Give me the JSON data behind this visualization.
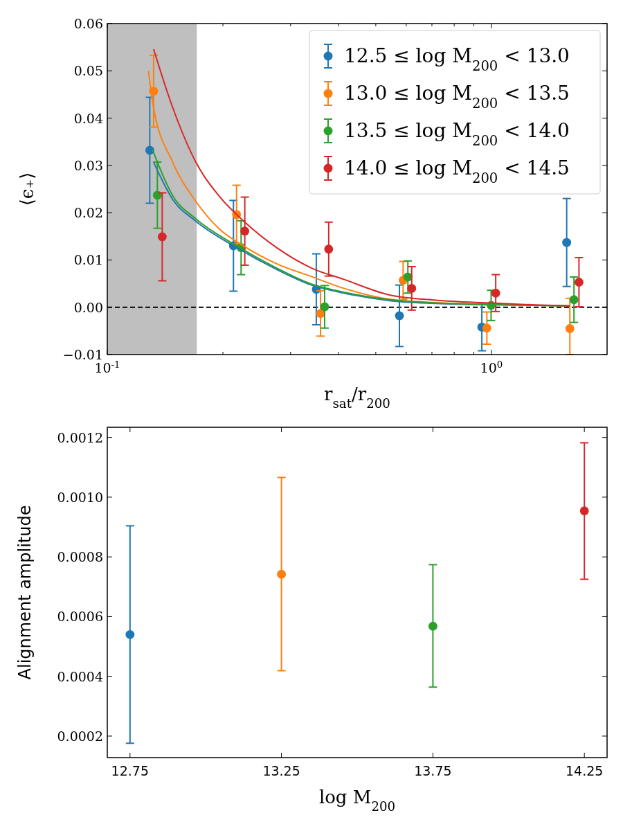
{
  "chart_data": [
    {
      "type": "scatter",
      "xlabel": "r$_{sat}$/r$_{200}$",
      "ylabel": "⟨ϵ₊⟩",
      "log": "x",
      "xlim": [
        0.1,
        2
      ],
      "ylim": [
        -0.01,
        0.06
      ],
      "xticks": [
        {
          "value": 0.1,
          "label": "10$^{-1}$"
        },
        {
          "value": 0.2,
          "label": null
        },
        {
          "value": 0.3,
          "label": null
        },
        {
          "value": 0.4,
          "label": null
        },
        {
          "value": 0.5,
          "label": null
        },
        {
          "value": 0.6,
          "label": null
        },
        {
          "value": 0.7,
          "label": null
        },
        {
          "value": 0.8,
          "label": null
        },
        {
          "value": 0.9,
          "label": null
        },
        {
          "value": 1,
          "label": "10$^{0}$"
        }
      ],
      "yticks": [
        {
          "value": -0.01,
          "label": "−0.01"
        },
        {
          "value": 0,
          "label": "0.00"
        },
        {
          "value": 0.01,
          "label": "0.01"
        },
        {
          "value": 0.02,
          "label": "0.02"
        },
        {
          "value": 0.03,
          "label": "0.03"
        },
        {
          "value": 0.04,
          "label": "0.04"
        },
        {
          "value": 0.05,
          "label": "0.05"
        },
        {
          "value": 0.06,
          "label": "0.06"
        }
      ],
      "legend": "top right",
      "marker": "circle",
      "grid": false,
      "bands": [
        {
          "axis": "x",
          "from": 0.1,
          "to": 0.171,
          "color": "#bfbfbf"
        }
      ],
      "ref_lines": [
        {
          "axis": "y",
          "value": 0,
          "color": "#000000",
          "line_style": "dashed"
        }
      ],
      "series": [
        {
          "name": "12.5 ≤ log M$_{200}$ < 13.0",
          "color": "#1f77b4",
          "x": [
            0.129,
            0.213,
            0.35,
            0.576,
            0.944,
            1.57
          ],
          "values": [
            0.0332,
            0.013,
            0.0038,
            -0.0018,
            -0.0042,
            0.0137
          ],
          "errors": [
            0.0112,
            0.0096,
            0.0075,
            0.0065,
            0.005,
            0.0093
          ]
        },
        {
          "name": "13.0 ≤ log M$_{200}$ < 13.5",
          "color": "#ff7f0e",
          "x": [
            0.132,
            0.217,
            0.359,
            0.589,
            0.973,
            1.6
          ],
          "values": [
            0.0457,
            0.0196,
            -0.0013,
            0.0057,
            -0.0044,
            -0.0045
          ],
          "errors": [
            0.0076,
            0.0062,
            0.0048,
            0.004,
            0.0034,
            [
              -0.01,
              0.0019
            ]
          ]
        },
        {
          "name": "13.5 ≤ log M$_{200}$ < 14.0",
          "color": "#2ca02c",
          "x": [
            0.135,
            0.223,
            0.368,
            0.606,
            0.998,
            1.64
          ],
          "values": [
            0.0237,
            0.0126,
            0.0001,
            0.0064,
            0.0004,
            0.0016
          ],
          "errors": [
            0.007,
            0.0057,
            0.0045,
            0.0034,
            0.0032,
            0.0048
          ]
        },
        {
          "name": "14.0 ≤ log M$_{200}$ < 14.5",
          "color": "#d62728",
          "x": [
            0.139,
            0.228,
            0.377,
            0.62,
            1.026,
            1.69
          ],
          "values": [
            0.0149,
            0.0161,
            0.0123,
            0.004,
            0.003,
            0.0053
          ],
          "errors": [
            0.0093,
            0.0072,
            0.0057,
            0.0046,
            0.0039,
            0.0052
          ]
        },
        {
          "type": "line",
          "marker": "none",
          "color": "#1f77b4",
          "x": [
            0.132,
            0.148,
            0.17,
            0.213,
            0.276,
            0.34,
            0.413,
            0.543,
            0.717,
            0.995,
            1.3,
            1.6
          ],
          "values": [
            0.0307,
            0.0228,
            0.0182,
            0.013,
            0.008,
            0.0047,
            0.003,
            0.0014,
            0.0008,
            0.0005,
            0.0004,
            0.0003
          ]
        },
        {
          "type": "line",
          "marker": "none",
          "color": "#ff7f0e",
          "x": [
            0.128,
            0.1315,
            0.148,
            0.17,
            0.196,
            0.224,
            0.276,
            0.34,
            0.413,
            0.543,
            0.717,
            0.995,
            1.3,
            1.6
          ],
          "values": [
            0.05,
            0.0429,
            0.0307,
            0.0224,
            0.0165,
            0.0132,
            0.0092,
            0.0065,
            0.004,
            0.0017,
            0.001,
            0.0006,
            0.0004,
            0.0003
          ]
        },
        {
          "type": "line",
          "marker": "none",
          "color": "#2ca02c",
          "x": [
            0.131,
            0.148,
            0.17,
            0.213,
            0.276,
            0.34,
            0.413,
            0.543,
            0.717,
            0.995,
            1.3,
            1.6
          ],
          "values": [
            0.0334,
            0.0236,
            0.0187,
            0.0134,
            0.0083,
            0.0049,
            0.0032,
            0.0016,
            0.0009,
            0.0006,
            0.0004,
            0.0003
          ]
        },
        {
          "type": "line",
          "marker": "none",
          "color": "#d62728",
          "x": [
            0.132,
            0.147,
            0.17,
            0.196,
            0.228,
            0.276,
            0.34,
            0.413,
            0.543,
            0.717,
            0.995,
            1.3,
            1.6
          ],
          "values": [
            0.0546,
            0.0429,
            0.0307,
            0.0234,
            0.018,
            0.0126,
            0.0083,
            0.0059,
            0.0026,
            0.0015,
            0.0009,
            0.0005,
            0.0003
          ]
        }
      ]
    },
    {
      "type": "scatter",
      "xlabel": "log M$_{200}$",
      "ylabel": "Alignment amplitude",
      "xlim": [
        12.675,
        14.325
      ],
      "ylim": [
        0.000128,
        0.001234
      ],
      "xticks": [
        {
          "value": 12.75,
          "label": "12.75"
        },
        {
          "value": 13.25,
          "label": "13.25"
        },
        {
          "value": 13.75,
          "label": "13.75"
        },
        {
          "value": 14.25,
          "label": "14.25"
        }
      ],
      "yticks": [
        {
          "value": 0.0002,
          "label": "0.0002"
        },
        {
          "value": 0.0004,
          "label": "0.0004"
        },
        {
          "value": 0.0006,
          "label": "0.0006"
        },
        {
          "value": 0.0008,
          "label": "0.0008"
        },
        {
          "value": 0.001,
          "label": "0.0010"
        },
        {
          "value": 0.0012,
          "label": "0.0012"
        }
      ],
      "marker": "circle",
      "grid": false,
      "legend": false,
      "series": [
        {
          "x": [
            12.75,
            13.25,
            13.75,
            14.25
          ],
          "values": [
            0.00054,
            0.000742,
            0.000568,
            0.000954
          ],
          "colors": [
            "#1f77b4",
            "#ff7f0e",
            "#2ca02c",
            "#d62728"
          ],
          "errors": [
            [
              0.000176,
              0.000904
            ],
            [
              0.000419,
              0.001066
            ],
            [
              0.000364,
              0.000774
            ],
            [
              0.000725,
              0.001182
            ]
          ]
        }
      ]
    }
  ]
}
